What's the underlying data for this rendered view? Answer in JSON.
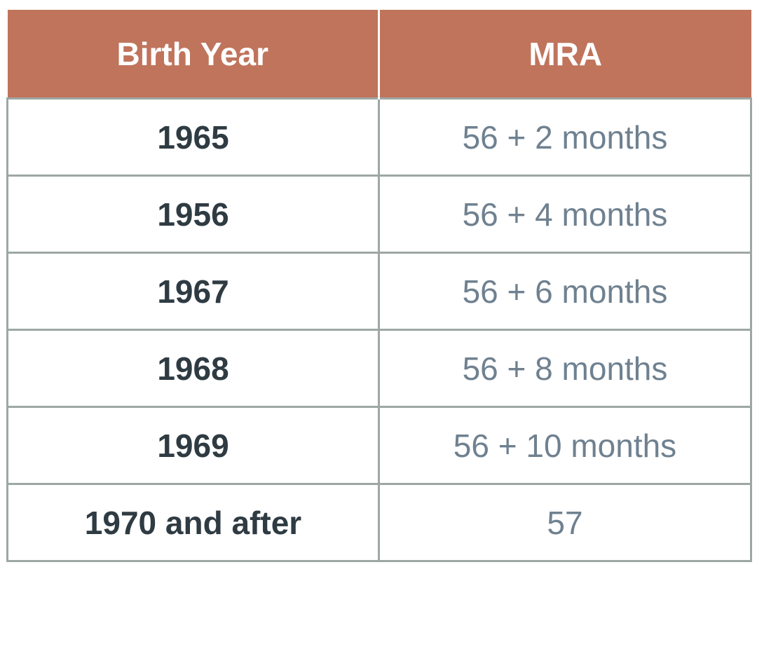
{
  "table": {
    "headers": [
      "Birth Year",
      "MRA"
    ],
    "rows": [
      {
        "birth_year": "1965",
        "mra": "56 + 2 months"
      },
      {
        "birth_year": "1956",
        "mra": "56 + 4 months"
      },
      {
        "birth_year": "1967",
        "mra": "56 + 6 months"
      },
      {
        "birth_year": "1968",
        "mra": "56 + 8 months"
      },
      {
        "birth_year": "1969",
        "mra": "56 + 10 months"
      },
      {
        "birth_year": "1970 and after",
        "mra": "57"
      }
    ]
  },
  "colors": {
    "header_bg": "#c0745c",
    "header_text": "#ffffff",
    "year_text": "#2f3b42",
    "mra_text": "#6f8190",
    "border": "#9ea7a5"
  }
}
